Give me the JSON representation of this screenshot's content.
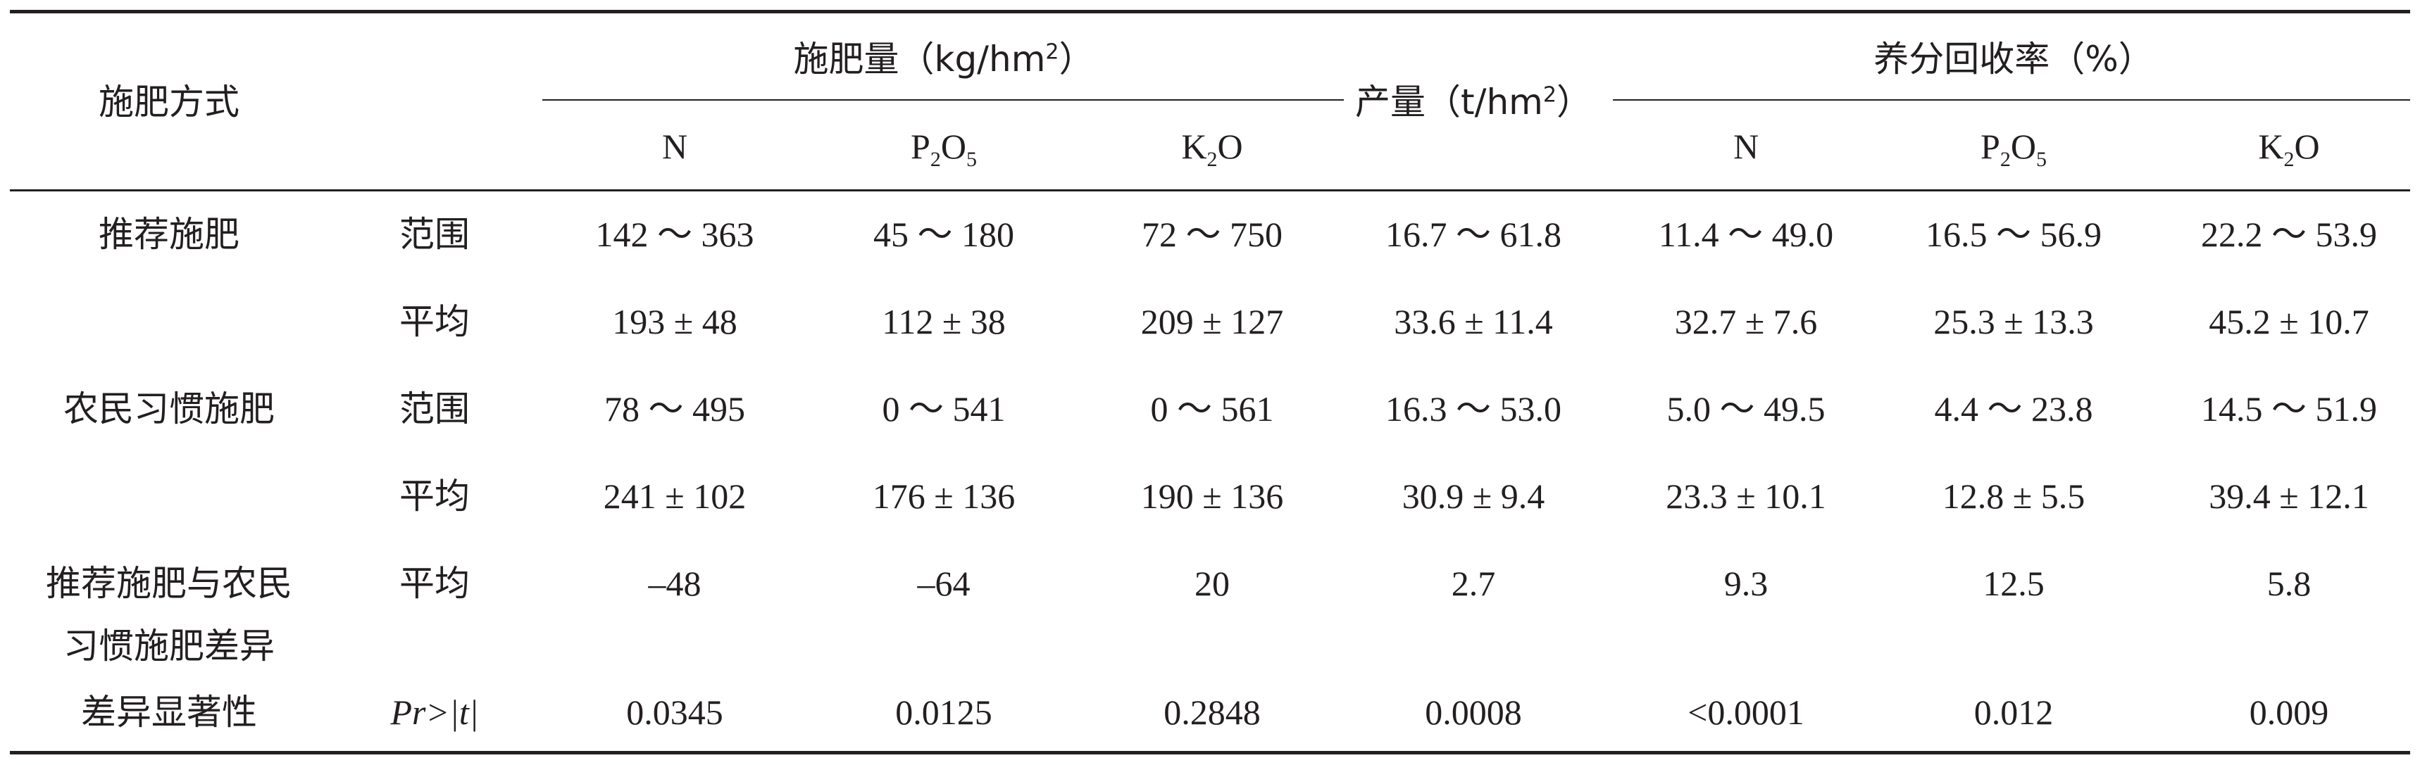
{
  "table": {
    "header": {
      "method": "施肥方式",
      "fert_group": "施肥量（kg/hm",
      "fert_group_sup": "2",
      "fert_group_end": "）",
      "yield": "产量（t/hm",
      "yield_sup": "2",
      "yield_end": "）",
      "recov_group": "养分回收率（%）",
      "n": "N",
      "p_a": "P",
      "p_sub1": "2",
      "p_b": "O",
      "p_sub2": "5",
      "k_a": "K",
      "k_sub": "2",
      "k_b": "O",
      "n2": "N",
      "p2_a": "P",
      "p2_sub1": "2",
      "p2_b": "O",
      "p2_sub2": "5",
      "k2_a": "K",
      "k2_sub": "2",
      "k2_b": "O"
    },
    "rows": [
      {
        "method": "推荐施肥",
        "stat": "范围",
        "values": [
          "142 ～ 363",
          "45 ～ 180",
          "72 ～ 750",
          "16.7 ～ 61.8",
          "11.4 ～ 49.0",
          "16.5 ～ 56.9",
          "22.2 ～ 53.9"
        ]
      },
      {
        "method": "",
        "stat": "平均",
        "values": [
          "193 ± 48",
          "112 ± 38",
          "209 ± 127",
          "33.6 ± 11.4",
          "32.7 ± 7.6",
          "25.3 ± 13.3",
          "45.2 ± 10.7"
        ]
      },
      {
        "method": "农民习惯施肥",
        "stat": "范围",
        "values": [
          "78 ～ 495",
          "0 ～ 541",
          "0 ～ 561",
          "16.3 ～ 53.0",
          "5.0 ～ 49.5",
          "4.4 ～ 23.8",
          "14.5 ～ 51.9"
        ]
      },
      {
        "method": "",
        "stat": "平均",
        "values": [
          "241 ± 102",
          "176 ± 136",
          "190 ± 136",
          "30.9 ± 9.4",
          "23.3 ± 10.1",
          "12.8 ± 5.5",
          "39.4 ± 12.1"
        ]
      },
      {
        "method": "推荐施肥与农民",
        "method_line2": "习惯施肥差异",
        "stat": "平均",
        "values": [
          "–48",
          "–64",
          "20",
          "2.7",
          "9.3",
          "12.5",
          "5.8"
        ]
      },
      {
        "method": "差异显著性",
        "stat": "Pr>|t|",
        "values": [
          "0.0345",
          "0.0125",
          "0.2848",
          "0.0008",
          "<0.0001",
          "0.012",
          "0.009"
        ]
      }
    ]
  }
}
